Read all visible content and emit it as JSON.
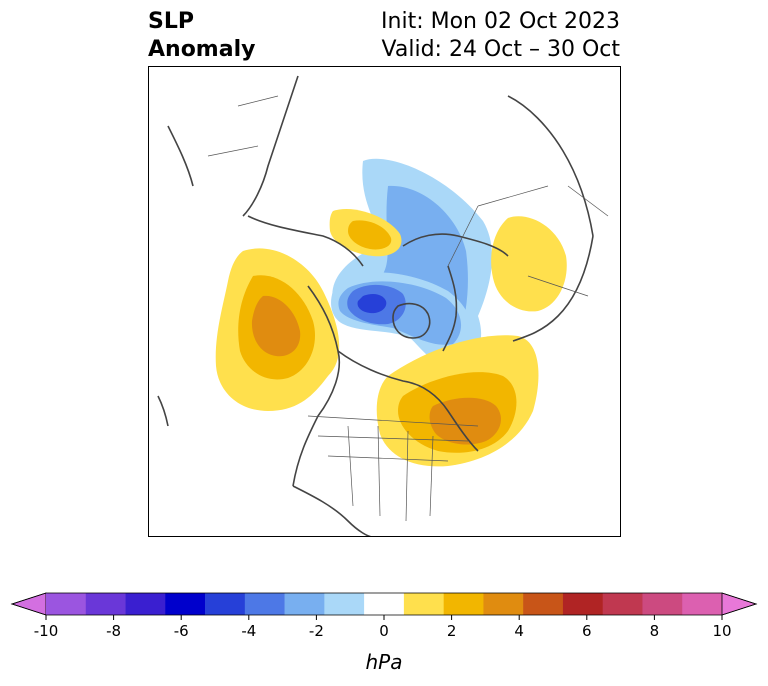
{
  "title": {
    "left_line1": "SLP",
    "left_line2": "Anomaly",
    "right_line1": "Init: Mon 02 Oct 2023",
    "right_line2": "Valid: 24 Oct – 30 Oct"
  },
  "colorbar": {
    "label": "hPa",
    "tick_labels": [
      "-10",
      "-8",
      "-6",
      "-4",
      "-2",
      "0",
      "2",
      "4",
      "6",
      "8",
      "10"
    ],
    "colors": [
      "#d36fe0",
      "#9b55e0",
      "#6a37d8",
      "#3a1fd0",
      "#0000cc",
      "#2640d8",
      "#4d78e6",
      "#78aff0",
      "#aad8f8",
      "#ffffff",
      "#ffe04d",
      "#f2b600",
      "#e08c10",
      "#c85518",
      "#b02424",
      "#c03850",
      "#cc4a80",
      "#dc60b0",
      "#e878d8"
    ]
  },
  "map": {
    "region": "Northern Hemisphere polar view",
    "anomalies": [
      {
        "name": "negative-center-arctic",
        "sign": "negative",
        "level": "-4 to -6"
      },
      {
        "name": "positive-center-gulf-of-alaska",
        "sign": "positive",
        "level": "4"
      },
      {
        "name": "positive-center-newfoundland",
        "sign": "positive",
        "level": "4"
      },
      {
        "name": "positive-center-siberia",
        "sign": "positive",
        "level": "2"
      },
      {
        "name": "positive-center-east-siberia",
        "sign": "positive",
        "level": "2"
      }
    ]
  }
}
